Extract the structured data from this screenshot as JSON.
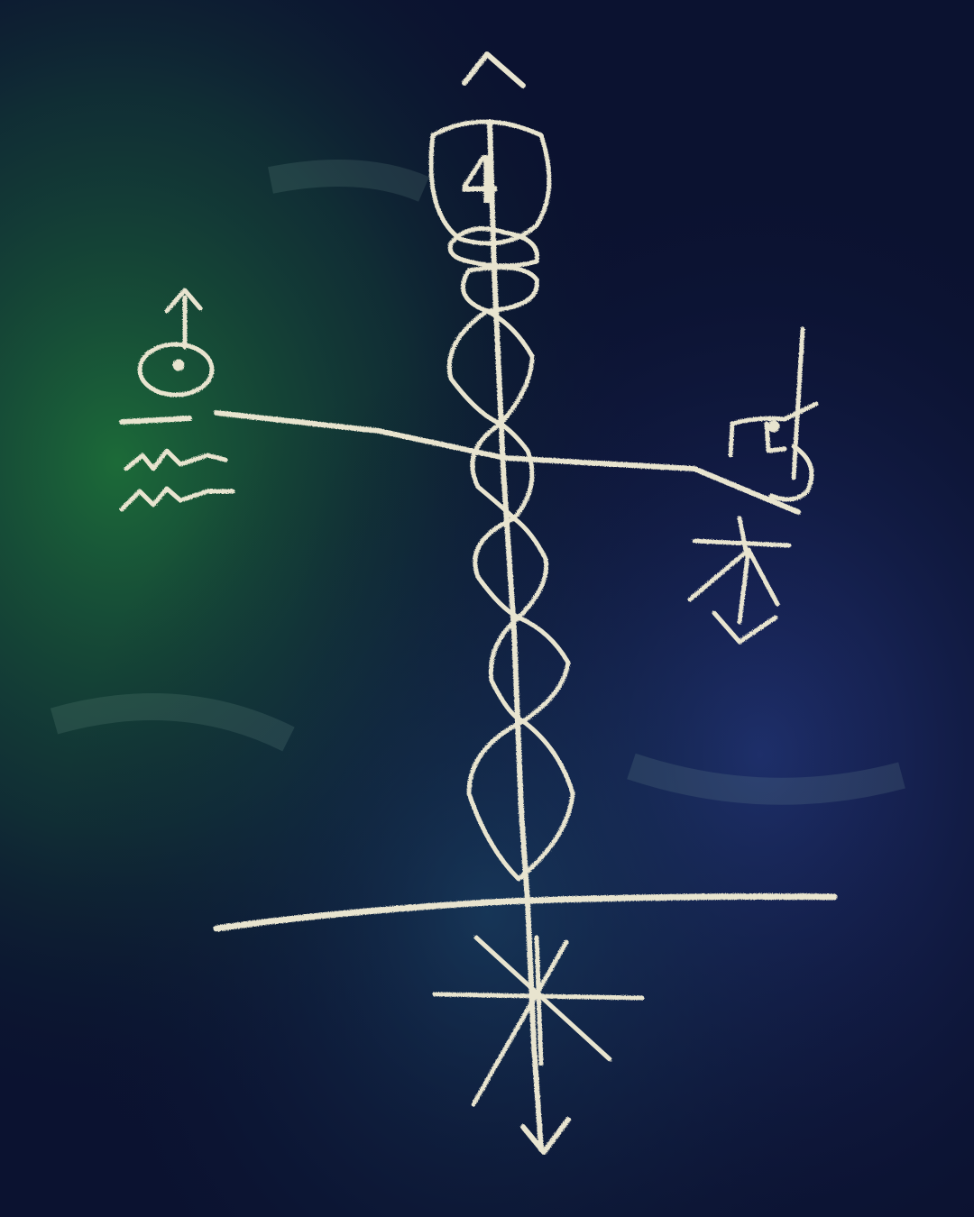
{
  "scene": {
    "subject": "chalkboard",
    "board_color": "#0b1230",
    "glow_color": "#1f7a3a",
    "shade_color": "#2a3f8f",
    "chalk_color": "#e8e4cf"
  },
  "symbols": {
    "top_sigil_digit": "4"
  }
}
